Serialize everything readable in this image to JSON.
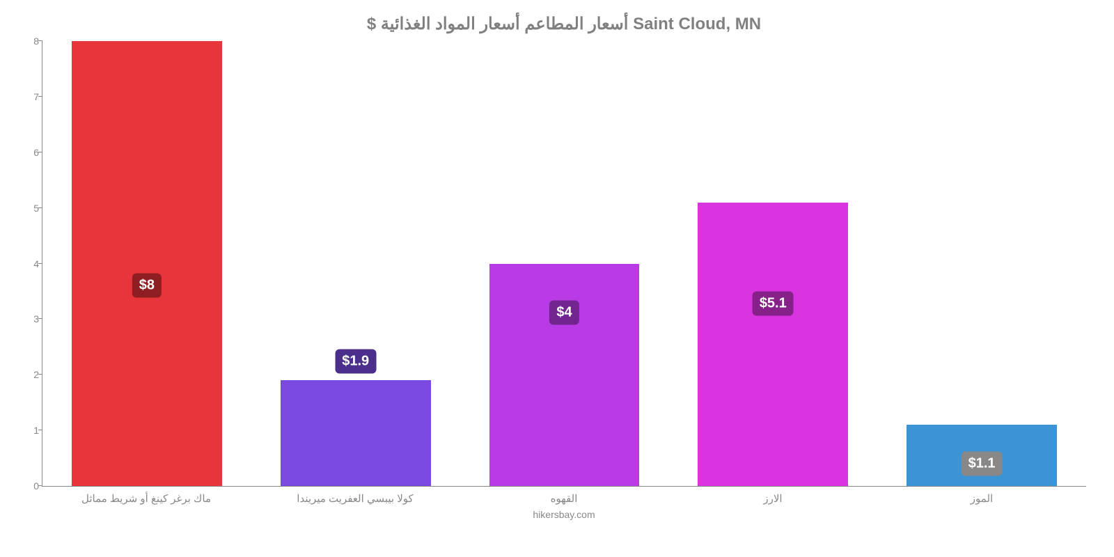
{
  "chart": {
    "type": "bar",
    "title": "Saint Cloud, MN أسعار المطاعم أسعار المواد الغذائية $",
    "title_color": "#808080",
    "title_fontsize": 24,
    "subtitle": "hikersbay.com",
    "subtitle_color": "#888888",
    "background_color": "#ffffff",
    "axis_color": "#888888",
    "label_color": "#888888",
    "x_label_fontsize": 15,
    "y_tick_fontsize": 14,
    "value_label_fontsize": 20,
    "value_label_text_color": "#ffffff",
    "value_label_radius": 6,
    "ylim": [
      0,
      8
    ],
    "ytick_step": 1,
    "yticks": [
      "0",
      "1",
      "2",
      "3",
      "4",
      "5",
      "6",
      "7",
      "8"
    ],
    "bar_width_ratio": 0.72,
    "categories": [
      "ماك برغر كينغ أو شريط مماثل",
      "كولا بيبسي العفريت ميريندا",
      "القهوه",
      "الارز",
      "الموز"
    ],
    "values": [
      8,
      1.9,
      4,
      5.1,
      1.1
    ],
    "value_labels": [
      "$8",
      "$1.9",
      "$4",
      "$5.1",
      "$1.1"
    ],
    "bar_colors": [
      "#e8353b",
      "#7a4ae0",
      "#b93be6",
      "#d934e0",
      "#3a94d6"
    ],
    "value_bg_colors": [
      "#8f1e22",
      "#4c2f8c",
      "#73258f",
      "#862189",
      "#888888"
    ],
    "value_label_vpos": [
      0.55,
      0.72,
      0.61,
      0.59,
      0.95
    ]
  }
}
